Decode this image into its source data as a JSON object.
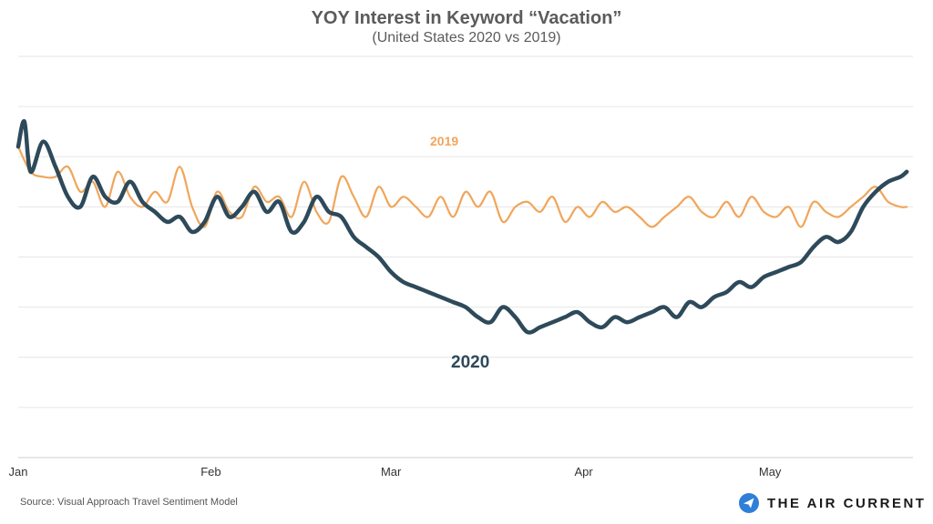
{
  "header": {
    "title": "YOY Interest in Keyword “Vacation”",
    "subtitle": "(United States 2020 vs 2019)"
  },
  "footer": {
    "source": "Source: Visual Approach Travel Sentiment Model",
    "brand": "THE AIR CURRENT",
    "brand_icon": "paper-plane-icon"
  },
  "colors": {
    "series_2019": "#f0a65b",
    "series_2020": "#2e4a5a",
    "grid": "#e6e6e6",
    "axis_text": "#333333",
    "brand_circle": "#2f7fd8"
  },
  "chart_data": {
    "type": "line",
    "title": "YOY Interest in Keyword “Vacation”",
    "subtitle": "(United States 2020 vs 2019)",
    "xlabel": "",
    "ylabel": "",
    "x_ticks": [
      "Jan",
      "Feb",
      "Mar",
      "Apr",
      "May"
    ],
    "x_tick_days": [
      0,
      31,
      60,
      91,
      121
    ],
    "xlim": [
      0,
      144
    ],
    "ylim": [
      0,
      80
    ],
    "grid": "horizontal",
    "y_ticks_shown": false,
    "series": [
      {
        "name": "2019",
        "line_label": "2019",
        "points": [
          [
            0,
            62
          ],
          [
            2,
            57
          ],
          [
            4,
            56
          ],
          [
            6,
            56
          ],
          [
            8,
            58
          ],
          [
            10,
            53
          ],
          [
            12,
            55
          ],
          [
            14,
            50
          ],
          [
            16,
            57
          ],
          [
            18,
            52
          ],
          [
            20,
            50
          ],
          [
            22,
            53
          ],
          [
            24,
            51
          ],
          [
            26,
            58
          ],
          [
            28,
            50
          ],
          [
            30,
            46
          ],
          [
            32,
            53
          ],
          [
            34,
            49
          ],
          [
            36,
            48
          ],
          [
            38,
            54
          ],
          [
            40,
            51
          ],
          [
            42,
            52
          ],
          [
            44,
            48
          ],
          [
            46,
            55
          ],
          [
            48,
            49
          ],
          [
            50,
            47
          ],
          [
            52,
            56
          ],
          [
            54,
            52
          ],
          [
            56,
            48
          ],
          [
            58,
            54
          ],
          [
            60,
            50
          ],
          [
            62,
            52
          ],
          [
            64,
            50
          ],
          [
            66,
            48
          ],
          [
            68,
            52
          ],
          [
            70,
            48
          ],
          [
            72,
            53
          ],
          [
            74,
            50
          ],
          [
            76,
            53
          ],
          [
            78,
            47
          ],
          [
            80,
            50
          ],
          [
            82,
            51
          ],
          [
            84,
            49
          ],
          [
            86,
            52
          ],
          [
            88,
            47
          ],
          [
            90,
            50
          ],
          [
            92,
            48
          ],
          [
            94,
            51
          ],
          [
            96,
            49
          ],
          [
            98,
            50
          ],
          [
            100,
            48
          ],
          [
            102,
            46
          ],
          [
            104,
            48
          ],
          [
            106,
            50
          ],
          [
            108,
            52
          ],
          [
            110,
            49
          ],
          [
            112,
            48
          ],
          [
            114,
            51
          ],
          [
            116,
            48
          ],
          [
            118,
            52
          ],
          [
            120,
            49
          ],
          [
            122,
            48
          ],
          [
            124,
            50
          ],
          [
            126,
            46
          ],
          [
            128,
            51
          ],
          [
            130,
            49
          ],
          [
            132,
            48
          ],
          [
            134,
            50
          ],
          [
            136,
            52
          ],
          [
            138,
            54
          ],
          [
            140,
            51
          ],
          [
            142,
            50
          ],
          [
            143,
            50
          ]
        ]
      },
      {
        "name": "2020",
        "line_label": "2020",
        "points": [
          [
            0,
            62
          ],
          [
            1,
            67
          ],
          [
            2,
            57
          ],
          [
            4,
            63
          ],
          [
            6,
            58
          ],
          [
            8,
            52
          ],
          [
            10,
            50
          ],
          [
            12,
            56
          ],
          [
            14,
            52
          ],
          [
            16,
            51
          ],
          [
            18,
            55
          ],
          [
            20,
            51
          ],
          [
            22,
            49
          ],
          [
            24,
            47
          ],
          [
            26,
            48
          ],
          [
            28,
            45
          ],
          [
            30,
            47
          ],
          [
            32,
            52
          ],
          [
            34,
            48
          ],
          [
            36,
            50
          ],
          [
            38,
            53
          ],
          [
            40,
            49
          ],
          [
            42,
            51
          ],
          [
            44,
            45
          ],
          [
            46,
            47
          ],
          [
            48,
            52
          ],
          [
            50,
            49
          ],
          [
            52,
            48
          ],
          [
            54,
            44
          ],
          [
            56,
            42
          ],
          [
            58,
            40
          ],
          [
            60,
            37
          ],
          [
            62,
            35
          ],
          [
            64,
            34
          ],
          [
            66,
            33
          ],
          [
            68,
            32
          ],
          [
            70,
            31
          ],
          [
            72,
            30
          ],
          [
            74,
            28
          ],
          [
            76,
            27
          ],
          [
            78,
            30
          ],
          [
            80,
            28
          ],
          [
            82,
            25
          ],
          [
            84,
            26
          ],
          [
            86,
            27
          ],
          [
            88,
            28
          ],
          [
            90,
            29
          ],
          [
            92,
            27
          ],
          [
            94,
            26
          ],
          [
            96,
            28
          ],
          [
            98,
            27
          ],
          [
            100,
            28
          ],
          [
            102,
            29
          ],
          [
            104,
            30
          ],
          [
            106,
            28
          ],
          [
            108,
            31
          ],
          [
            110,
            30
          ],
          [
            112,
            32
          ],
          [
            114,
            33
          ],
          [
            116,
            35
          ],
          [
            118,
            34
          ],
          [
            120,
            36
          ],
          [
            122,
            37
          ],
          [
            124,
            38
          ],
          [
            126,
            39
          ],
          [
            128,
            42
          ],
          [
            130,
            44
          ],
          [
            132,
            43
          ],
          [
            134,
            45
          ],
          [
            136,
            50
          ],
          [
            138,
            53
          ],
          [
            140,
            55
          ],
          [
            142,
            56
          ],
          [
            143,
            57
          ]
        ]
      }
    ]
  }
}
